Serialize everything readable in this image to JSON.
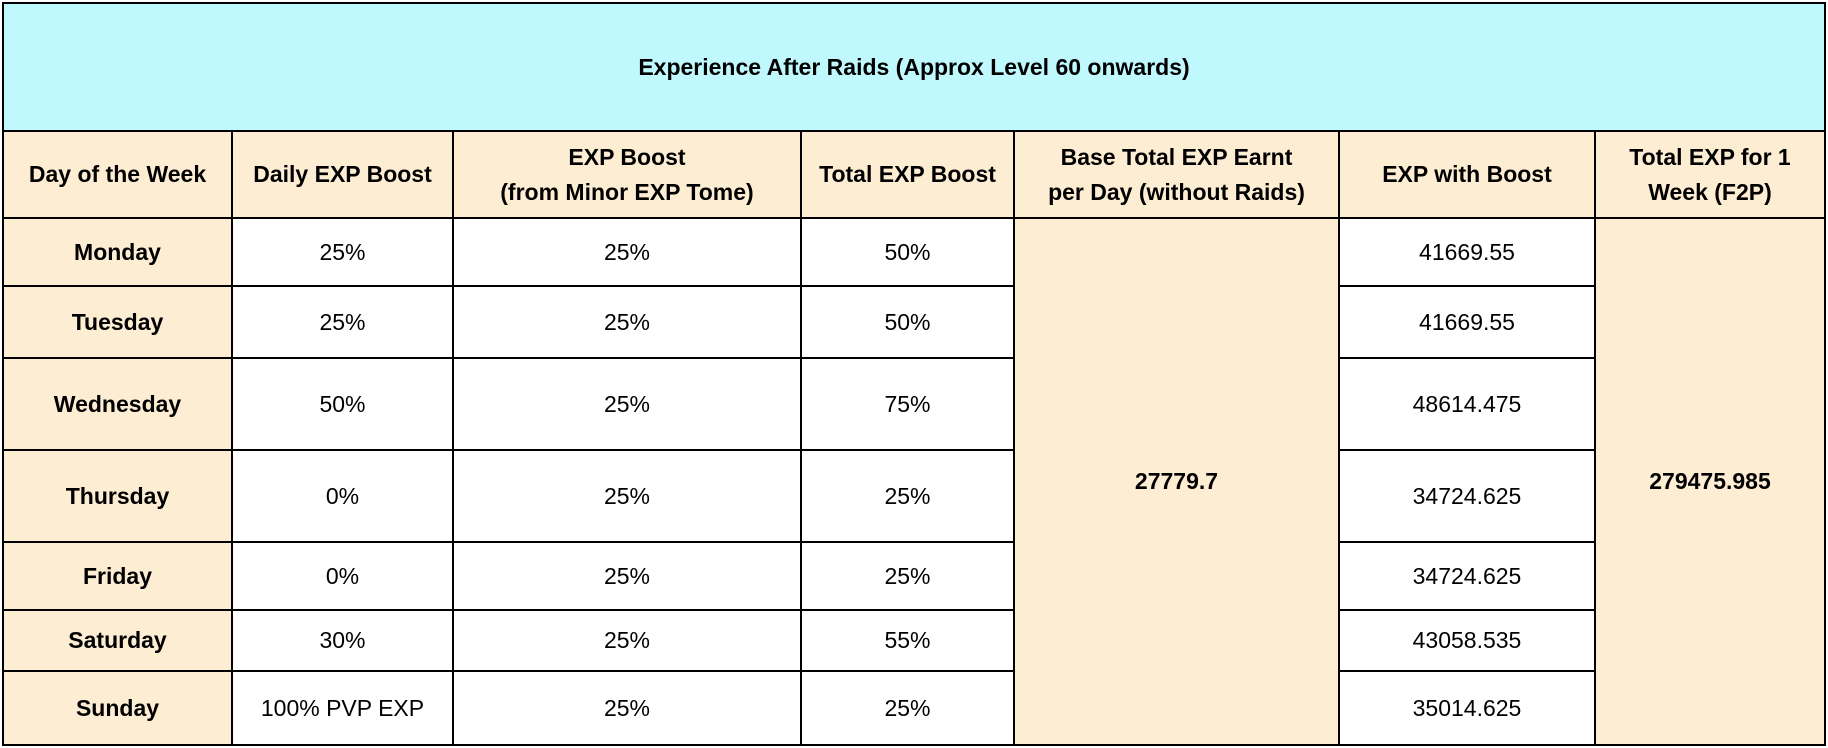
{
  "title": "Experience After Raids (Approx Level 60 onwards)",
  "headers": {
    "day": "Day of the Week",
    "daily_boost": "Daily EXP Boost",
    "tome_boost_line1": "EXP Boost",
    "tome_boost_line2": "(from Minor EXP Tome)",
    "total_boost": "Total EXP Boost",
    "base_exp_line1": "Base Total EXP Earnt",
    "base_exp_line2": "per Day (without Raids)",
    "exp_with_boost": "EXP with Boost",
    "weekly_line1": "Total EXP for 1",
    "weekly_line2": "Week (F2P)"
  },
  "base_exp": "27779.7",
  "weekly_total": "279475.985",
  "rows": [
    {
      "day": "Monday",
      "daily": "25%",
      "tome": "25%",
      "total": "50%",
      "boosted": "41669.55"
    },
    {
      "day": "Tuesday",
      "daily": "25%",
      "tome": "25%",
      "total": "50%",
      "boosted": "41669.55"
    },
    {
      "day": "Wednesday",
      "daily": "50%",
      "tome": "25%",
      "total": "75%",
      "boosted": "48614.475"
    },
    {
      "day": "Thursday",
      "daily": "0%",
      "tome": "25%",
      "total": "25%",
      "boosted": "34724.625"
    },
    {
      "day": "Friday",
      "daily": "0%",
      "tome": "25%",
      "total": "25%",
      "boosted": "34724.625"
    },
    {
      "day": "Saturday",
      "daily": "30%",
      "tome": "25%",
      "total": "55%",
      "boosted": "43058.535"
    },
    {
      "day": "Sunday",
      "daily": "100% PVP EXP",
      "tome": "25%",
      "total": "25%",
      "boosted": "35014.625"
    }
  ]
}
